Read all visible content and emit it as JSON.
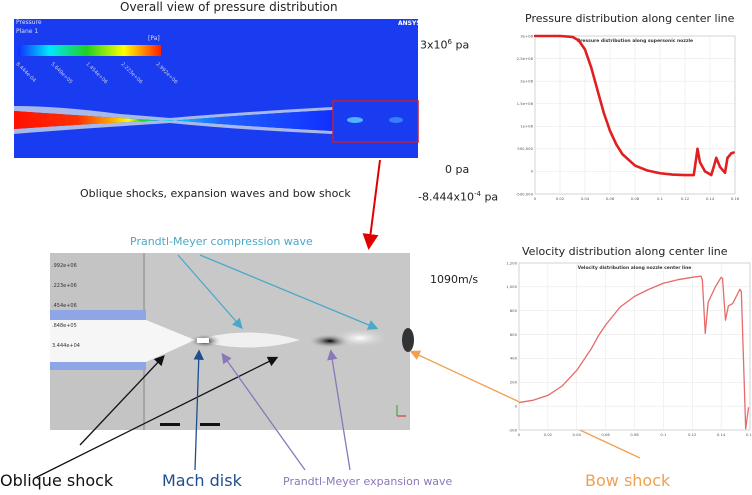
{
  "top_left": {
    "title": "Overall view of pressure distribution",
    "legend_title": "Pressure",
    "legend_subtitle": "Plane 1",
    "legend_unit": "[Pa]",
    "legend_ticks": [
      "8.444e-04",
      "5.649e+05",
      "1.454e+06",
      "2.223e+06",
      "2.992e+06"
    ],
    "logo": "ANSYS"
  },
  "middle_left": {
    "title": "Oblique shocks, expansion waves and bow shock",
    "legend_ticks": [
      ".992e+06",
      ".223e+06",
      ".454e+06",
      ".848e+05",
      "3.444e+04"
    ]
  },
  "annotations": {
    "compression_wave": "Prandtl-Meyer compression wave",
    "oblique_shock": "Oblique shock",
    "mach_disk": "Mach disk",
    "expansion_wave": "Prandtl-Meyer expansion wave",
    "bow_shock": "Bow shock"
  },
  "colors": {
    "compression": "#4aa8c8",
    "mach": "#1f4e8c",
    "expansion": "#8a78b8",
    "bow": "#f0a050",
    "curve": "#e02020",
    "vel_curve": "#e86a6a"
  },
  "pressure_labels": {
    "title": "Pressure distribution along center line",
    "top": "3x10",
    "top_exp": "6",
    "top_unit": " pa",
    "zero": "0 pa",
    "bottom": "-8.444x10",
    "bottom_exp": "-4",
    "bottom_unit": " pa"
  },
  "velocity_labels": {
    "title": "Velocity distribution along center line",
    "max": "1090m/s"
  },
  "chart_data": [
    {
      "type": "scatter",
      "title": "Pressure distribution along supersonic nozzle",
      "xlim": [
        0,
        0.16
      ],
      "ylim": [
        -500000,
        3000000
      ],
      "xticks": [
        "0",
        "0.02",
        "0.04",
        "0.06",
        "0.08",
        "0.1",
        "0.12",
        "0.14",
        "0.16"
      ],
      "yticks": [
        "-500,000",
        "0",
        "500,000",
        "1e+06",
        "1.5e+06",
        "2e+06",
        "2.5e+06",
        "3e+06"
      ],
      "grid": true,
      "x": [
        0,
        0.02,
        0.03,
        0.035,
        0.04,
        0.045,
        0.05,
        0.055,
        0.06,
        0.065,
        0.07,
        0.08,
        0.09,
        0.1,
        0.11,
        0.12,
        0.127,
        0.129,
        0.13,
        0.132,
        0.136,
        0.141,
        0.143,
        0.145,
        0.148,
        0.152,
        0.154,
        0.157,
        0.159
      ],
      "y": [
        3000000,
        3000000,
        2980000,
        2900000,
        2700000,
        2300000,
        1800000,
        1300000,
        900000,
        600000,
        380000,
        130000,
        20000,
        -40000,
        -70000,
        -80000,
        -80000,
        300000,
        500000,
        200000,
        0,
        -80000,
        100000,
        300000,
        100000,
        -30000,
        300000,
        400000,
        420000
      ]
    },
    {
      "type": "line",
      "title": "Velocity distribution along nozzle center line",
      "xlim": [
        0,
        0.16
      ],
      "ylim": [
        -200,
        1200
      ],
      "xticks": [
        "0",
        "0.02",
        "0.04",
        "0.06",
        "0.08",
        "0.1",
        "0.12",
        "0.14",
        "0.16"
      ],
      "yticks": [
        "-200",
        "0",
        "200",
        "400",
        "600",
        "800",
        "1,000",
        "1,200"
      ],
      "grid": true,
      "x": [
        0,
        0.01,
        0.02,
        0.03,
        0.04,
        0.05,
        0.055,
        0.06,
        0.07,
        0.08,
        0.09,
        0.1,
        0.11,
        0.12,
        0.126,
        0.127,
        0.129,
        0.131,
        0.136,
        0.14,
        0.141,
        0.143,
        0.145,
        0.148,
        0.153,
        0.154,
        0.157,
        0.159
      ],
      "y": [
        30,
        50,
        90,
        170,
        300,
        480,
        590,
        680,
        830,
        920,
        980,
        1030,
        1060,
        1080,
        1090,
        1060,
        610,
        870,
        1000,
        1080,
        1070,
        720,
        840,
        860,
        980,
        960,
        -190,
        -10
      ]
    }
  ]
}
